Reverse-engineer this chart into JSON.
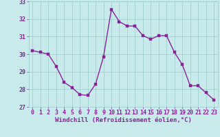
{
  "x": [
    0,
    1,
    2,
    3,
    4,
    5,
    6,
    7,
    8,
    9,
    10,
    11,
    12,
    13,
    14,
    15,
    16,
    17,
    18,
    19,
    20,
    21,
    22,
    23
  ],
  "y": [
    30.2,
    30.1,
    30.0,
    29.3,
    28.4,
    28.1,
    27.7,
    27.65,
    28.3,
    29.85,
    32.55,
    31.85,
    31.6,
    31.6,
    31.05,
    30.85,
    31.05,
    31.05,
    30.1,
    29.4,
    28.2,
    28.2,
    27.8,
    27.4
  ],
  "line_color": "#882299",
  "marker_color": "#882299",
  "bg_color": "#c8eaea",
  "grid_color": "#99cccc",
  "xlabel": "Windchill (Refroidissement éolien,°C)",
  "ylim": [
    27,
    33
  ],
  "xlim": [
    -0.5,
    23.5
  ],
  "yticks": [
    27,
    28,
    29,
    30,
    31,
    32,
    33
  ],
  "xticks": [
    0,
    1,
    2,
    3,
    4,
    5,
    6,
    7,
    8,
    9,
    10,
    11,
    12,
    13,
    14,
    15,
    16,
    17,
    18,
    19,
    20,
    21,
    22,
    23
  ],
  "xlabel_fontsize": 6.5,
  "tick_fontsize": 6.0,
  "linewidth": 1.0,
  "markersize": 2.5
}
